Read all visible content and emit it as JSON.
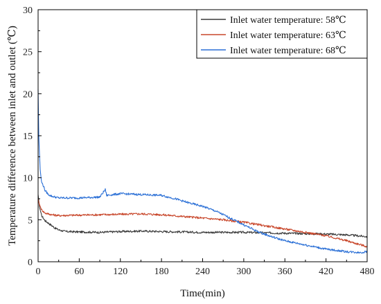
{
  "chart_data": {
    "type": "line",
    "title": "",
    "xlabel": "Time(min)",
    "ylabel": "Temperature difference between inlet and outlet (℃)",
    "xlim": [
      0,
      480
    ],
    "ylim": [
      0,
      30
    ],
    "x_ticks": [
      0,
      60,
      120,
      180,
      240,
      300,
      360,
      420,
      480
    ],
    "y_ticks": [
      0,
      5,
      10,
      15,
      20,
      25,
      30
    ],
    "grid": false,
    "legend_position": "top-right",
    "series": [
      {
        "name": "Inlet water temperature: 58℃",
        "color": "#3a3a3a",
        "x": [
          0,
          2,
          5,
          10,
          15,
          20,
          25,
          30,
          40,
          60,
          90,
          120,
          150,
          180,
          210,
          240,
          270,
          300,
          330,
          360,
          390,
          420,
          450,
          480
        ],
        "y": [
          8.0,
          6.5,
          5.5,
          4.9,
          4.6,
          4.3,
          4.0,
          3.8,
          3.6,
          3.55,
          3.5,
          3.6,
          3.65,
          3.6,
          3.55,
          3.5,
          3.5,
          3.5,
          3.45,
          3.4,
          3.35,
          3.3,
          3.2,
          3.0
        ]
      },
      {
        "name": "Inlet water temperature: 63℃",
        "color": "#c8462a",
        "x": [
          0,
          2,
          5,
          10,
          15,
          20,
          30,
          60,
          90,
          120,
          150,
          180,
          210,
          240,
          270,
          300,
          330,
          360,
          390,
          420,
          450,
          480
        ],
        "y": [
          7.5,
          6.8,
          6.2,
          5.8,
          5.7,
          5.6,
          5.5,
          5.55,
          5.6,
          5.65,
          5.7,
          5.6,
          5.4,
          5.2,
          5.0,
          4.7,
          4.3,
          3.9,
          3.5,
          3.1,
          2.5,
          1.8
        ]
      },
      {
        "name": "Inlet water temperature: 68℃",
        "color": "#2a6fd6",
        "x": [
          0,
          1,
          3,
          5,
          8,
          10,
          15,
          20,
          30,
          60,
          90,
          98,
          100,
          120,
          150,
          180,
          200,
          220,
          240,
          260,
          280,
          300,
          320,
          340,
          360,
          390,
          420,
          450,
          470,
          480
        ],
        "y": [
          20.5,
          15.0,
          11.0,
          9.5,
          9.0,
          8.5,
          8.0,
          7.8,
          7.6,
          7.6,
          7.7,
          8.6,
          7.9,
          8.1,
          8.0,
          7.9,
          7.5,
          7.0,
          6.6,
          6.0,
          5.2,
          4.4,
          3.6,
          3.0,
          2.5,
          2.0,
          1.5,
          1.2,
          1.1,
          1.2
        ]
      }
    ]
  }
}
